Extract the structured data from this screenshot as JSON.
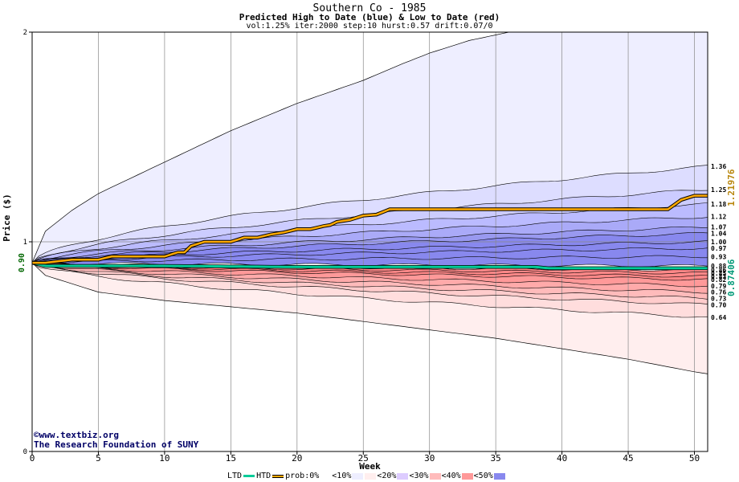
{
  "chart_data": {
    "type": "area",
    "title": "Southern Co - 1985",
    "subtitle": "Predicted High to Date (blue) &  Low to Date (red)",
    "params": "vol:1.25% iter:2000 step:10 hurst:0.57 drift:0.07/0",
    "xlabel": "Week",
    "ylabel": "Price ($)",
    "xlim": [
      0,
      51
    ],
    "ylim": [
      0,
      2
    ],
    "x_ticks": [
      0,
      5,
      10,
      15,
      20,
      25,
      30,
      35,
      40,
      45,
      50
    ],
    "y_ticks": [
      0,
      1,
      2
    ],
    "start_label": "0.90",
    "start_value": 0.9,
    "grid": true,
    "high_bands": [
      {
        "label": "1.36",
        "end": 1.36
      },
      {
        "label": "1.25",
        "end": 1.25
      },
      {
        "label": "1.18",
        "end": 1.18
      },
      {
        "label": "1.12",
        "end": 1.12
      },
      {
        "label": "1.07",
        "end": 1.07
      },
      {
        "label": "1.04",
        "end": 1.04
      },
      {
        "label": "1.00",
        "end": 1.0
      },
      {
        "label": "0.97",
        "end": 0.97
      },
      {
        "label": "0.93",
        "end": 0.93
      },
      {
        "label": "0.88",
        "end": 0.885
      }
    ],
    "low_bands": [
      {
        "label": "0.86",
        "end": 0.865
      },
      {
        "label": "0.85",
        "end": 0.85
      },
      {
        "label": "0.83",
        "end": 0.835
      },
      {
        "label": "0.82",
        "end": 0.82
      },
      {
        "label": "0.79",
        "end": 0.79
      },
      {
        "label": "0.76",
        "end": 0.76
      },
      {
        "label": "0.73",
        "end": 0.73
      },
      {
        "label": "0.70",
        "end": 0.7
      },
      {
        "label": "0.64",
        "end": 0.64
      }
    ],
    "outer_high": [
      [
        0,
        0.9
      ],
      [
        1,
        1.05
      ],
      [
        3,
        1.15
      ],
      [
        5,
        1.23
      ],
      [
        8,
        1.32
      ],
      [
        10,
        1.38
      ],
      [
        15,
        1.53
      ],
      [
        20,
        1.66
      ],
      [
        25,
        1.77
      ],
      [
        28,
        1.85
      ],
      [
        30,
        1.9
      ],
      [
        33,
        1.96
      ],
      [
        36,
        2.0
      ],
      [
        51,
        2.0
      ]
    ],
    "outer_low": [
      [
        0,
        0.9
      ],
      [
        1,
        0.84
      ],
      [
        3,
        0.8
      ],
      [
        5,
        0.76
      ],
      [
        10,
        0.72
      ],
      [
        15,
        0.69
      ],
      [
        20,
        0.66
      ],
      [
        25,
        0.62
      ],
      [
        30,
        0.58
      ],
      [
        35,
        0.54
      ],
      [
        40,
        0.49
      ],
      [
        45,
        0.44
      ],
      [
        50,
        0.38
      ],
      [
        51,
        0.37
      ]
    ],
    "htd_label": "1.21976",
    "htd_value": 1.21976,
    "htd_series": [
      [
        0,
        0.9
      ],
      [
        1,
        0.9
      ],
      [
        3,
        0.915
      ],
      [
        5,
        0.915
      ],
      [
        6,
        0.93
      ],
      [
        10,
        0.93
      ],
      [
        11,
        0.95
      ],
      [
        11.5,
        0.95
      ],
      [
        12,
        0.98
      ],
      [
        12.5,
        0.99
      ],
      [
        13,
        1.0
      ],
      [
        15,
        1.0
      ],
      [
        16,
        1.02
      ],
      [
        17,
        1.02
      ],
      [
        18,
        1.035
      ],
      [
        19,
        1.045
      ],
      [
        20,
        1.06
      ],
      [
        21,
        1.06
      ],
      [
        22,
        1.075
      ],
      [
        22.5,
        1.08
      ],
      [
        23,
        1.095
      ],
      [
        24,
        1.105
      ],
      [
        25,
        1.125
      ],
      [
        26,
        1.13
      ],
      [
        27,
        1.155
      ],
      [
        40,
        1.155
      ],
      [
        48,
        1.155
      ],
      [
        49,
        1.2
      ],
      [
        50,
        1.22
      ],
      [
        51,
        1.22
      ]
    ],
    "ltd_label": "0.87406",
    "ltd_value": 0.87406,
    "ltd_series": [
      [
        0,
        0.9
      ],
      [
        1,
        0.885
      ],
      [
        3,
        0.885
      ],
      [
        5,
        0.885
      ],
      [
        10,
        0.885
      ],
      [
        20,
        0.88
      ],
      [
        30,
        0.88
      ],
      [
        38,
        0.88
      ],
      [
        39,
        0.874
      ],
      [
        51,
        0.874
      ]
    ],
    "legend": [
      "LTD",
      "HTD",
      "prob:0%",
      "<10%",
      "<20%",
      "<30%",
      "<40%",
      "<50%"
    ],
    "colors": {
      "htd": "#FFAA00",
      "ltd": "#00CC99",
      "start_label": "#006600",
      "htd_label": "#B8860B",
      "ltd_label": "#009977",
      "high_fills": [
        "#EEEEFF",
        "#DDDDFF",
        "#CCCCFF",
        "#BBBBFF",
        "#AAAAF8",
        "#9999F0",
        "#8888EE"
      ],
      "low_fills": [
        "#FFEEEE",
        "#FFDDDD",
        "#FFCCCC",
        "#FFBBBB",
        "#FFAAAA",
        "#FF9999",
        "#FF8888"
      ],
      "legend_swatches": [
        "#FFFFFF",
        "#EEEEFF",
        "#DDDDFF",
        "#FFCCCC",
        "#CCBBFF",
        "#FF9999",
        "#AAAAF8",
        "#FF8888",
        "#8888EE"
      ]
    }
  },
  "copyright": {
    "line1": "©www.textbiz.org",
    "line2": "The Research Foundation of SUNY"
  }
}
